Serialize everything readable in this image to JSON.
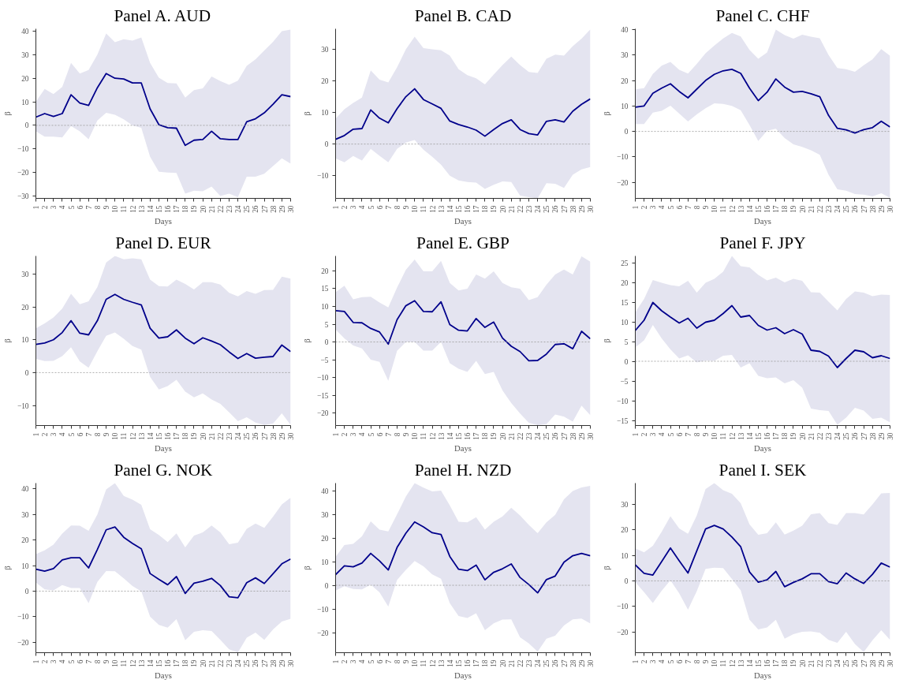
{
  "chart_data": [
    {
      "type": "line",
      "title": "Panel A. AUD",
      "xlabel": "Days",
      "ylabel": "β",
      "x": [
        1,
        2,
        3,
        4,
        5,
        6,
        7,
        8,
        9,
        10,
        11,
        12,
        13,
        14,
        15,
        16,
        17,
        18,
        19,
        20,
        21,
        22,
        23,
        24,
        25,
        26,
        27,
        28,
        29,
        30
      ],
      "xlim": [
        1,
        30
      ],
      "xticks": [
        1,
        2,
        3,
        4,
        5,
        6,
        7,
        8,
        9,
        10,
        11,
        12,
        13,
        14,
        15,
        16,
        17,
        18,
        19,
        20,
        21,
        22,
        23,
        24,
        25,
        26,
        27,
        28,
        29,
        30
      ],
      "ylim": [
        -31,
        41
      ],
      "yticks": [
        -30,
        -20,
        -10,
        0,
        10,
        20,
        30,
        40
      ],
      "ref_lines": [
        {
          "axis": "y",
          "value": 0,
          "color": "#999999",
          "line_style": "dotted"
        }
      ],
      "series": [
        {
          "color": "#00008b",
          "values": [
            3.5,
            5,
            3.8,
            5,
            13,
            9.5,
            8.5,
            16,
            22,
            20,
            19.7,
            18,
            18,
            7,
            0.3,
            -1,
            -1.2,
            -8.5,
            -6.3,
            -6,
            -2.5,
            -5.7,
            -6,
            -6,
            1.5,
            2.8,
            5.3,
            9,
            13,
            12.2
          ],
          "lower": [
            -2.5,
            -4.8,
            -4.8,
            -5.1,
            -0.3,
            -2.5,
            -5.9,
            2.1,
            5.3,
            4.5,
            2.6,
            0,
            -1,
            -13.3,
            -19.7,
            -20,
            -20.2,
            -29,
            -27.7,
            -28,
            -26,
            -30,
            -29,
            -30.5,
            -21.8,
            -21.8,
            -20.5,
            -17.3,
            -14,
            -16.3
          ],
          "upper": [
            10,
            15.5,
            13.3,
            16.3,
            26.5,
            22,
            23.5,
            30,
            39,
            35.3,
            36.6,
            36,
            37.3,
            26.5,
            20.2,
            18,
            17.8,
            11.8,
            15,
            15.7,
            20.7,
            18.8,
            17.2,
            19,
            25.3,
            28,
            31.8,
            35.5,
            40,
            40.7
          ]
        }
      ]
    },
    {
      "type": "line",
      "title": "Panel B. CAD",
      "xlabel": "Days",
      "ylabel": "β",
      "x": [
        1,
        2,
        3,
        4,
        5,
        6,
        7,
        8,
        9,
        10,
        11,
        12,
        13,
        14,
        15,
        16,
        17,
        18,
        19,
        20,
        21,
        22,
        23,
        24,
        25,
        26,
        27,
        28,
        29,
        30
      ],
      "xlim": [
        1,
        30
      ],
      "xticks": [
        1,
        2,
        3,
        4,
        5,
        6,
        7,
        8,
        9,
        10,
        11,
        12,
        13,
        14,
        15,
        16,
        17,
        18,
        19,
        20,
        21,
        22,
        23,
        24,
        25,
        26,
        27,
        28,
        29,
        30
      ],
      "ylim": [
        -17.2,
        36.5
      ],
      "yticks": [
        -10,
        0,
        10,
        20,
        30
      ],
      "ref_lines": [
        {
          "axis": "y",
          "value": 0,
          "color": "#999999",
          "line_style": "dotted"
        }
      ],
      "series": [
        {
          "color": "#00008b",
          "values": [
            1.5,
            2.7,
            4.7,
            4.9,
            10.8,
            8.2,
            6.7,
            11.2,
            15,
            17.5,
            14.1,
            12.7,
            11.3,
            7.3,
            6.2,
            5.4,
            4.4,
            2.5,
            4.6,
            6.5,
            7.7,
            4.6,
            3.3,
            2.9,
            7.2,
            7.7,
            7,
            10.4,
            12.6,
            14.3
          ],
          "lower": [
            -4.5,
            -5.8,
            -3.8,
            -5.2,
            -1.5,
            -3.7,
            -5.8,
            -1.5,
            0.5,
            1.3,
            -1.8,
            -4,
            -6.5,
            -10,
            -11.5,
            -12,
            -12.2,
            -14.2,
            -12.9,
            -11.8,
            -12,
            -16.3,
            -16.8,
            -17.2,
            -12.4,
            -12.6,
            -13.9,
            -9.7,
            -8,
            -7.3
          ],
          "upper": [
            8,
            11,
            13,
            14.7,
            23.3,
            20.4,
            19.5,
            24.3,
            30,
            34,
            30.4,
            30,
            29.7,
            28,
            23.7,
            21.8,
            20.8,
            18.9,
            22,
            25,
            27.7,
            25,
            22.8,
            22.5,
            27,
            28.3,
            28,
            31,
            33.4,
            36.3
          ]
        }
      ]
    },
    {
      "type": "line",
      "title": "Panel C. CHF",
      "xlabel": "Days",
      "ylabel": "β",
      "x": [
        1,
        2,
        3,
        4,
        5,
        6,
        7,
        8,
        9,
        10,
        11,
        12,
        13,
        14,
        15,
        16,
        17,
        18,
        19,
        20,
        21,
        22,
        23,
        24,
        25,
        26,
        27,
        28,
        29,
        30
      ],
      "xlim": [
        1,
        30
      ],
      "xticks": [
        1,
        2,
        3,
        4,
        5,
        6,
        7,
        8,
        9,
        10,
        11,
        12,
        13,
        14,
        15,
        16,
        17,
        18,
        19,
        20,
        21,
        22,
        23,
        24,
        25,
        26,
        27,
        28,
        29,
        30
      ],
      "ylim": [
        -26.3,
        40.3
      ],
      "yticks": [
        -20,
        -10,
        0,
        10,
        20,
        30,
        40
      ],
      "ref_lines": [
        {
          "axis": "y",
          "value": 0,
          "color": "#999999",
          "line_style": "dotted"
        }
      ],
      "series": [
        {
          "color": "#00008b",
          "values": [
            9.5,
            10,
            15,
            17,
            18.7,
            15.7,
            13.2,
            16.6,
            20,
            22.4,
            23.8,
            24.4,
            22.8,
            17,
            12.1,
            15.4,
            20.6,
            17.4,
            15.4,
            15.7,
            14.8,
            13.6,
            6.3,
            1.2,
            0.6,
            -0.6,
            0.7,
            1.5,
            4,
            1.7
          ],
          "lower": [
            2.9,
            2.9,
            7.4,
            8.1,
            10.1,
            7,
            3.9,
            6.7,
            9.1,
            11,
            10.8,
            10,
            8.3,
            2.5,
            -3.8,
            0.3,
            1,
            -2.6,
            -5.1,
            -6.1,
            -7.4,
            -9.2,
            -17,
            -22.7,
            -23.3,
            -24.6,
            -24.8,
            -25.5,
            -24.3,
            -26.1
          ],
          "upper": [
            16.5,
            17,
            22.6,
            25.8,
            27.3,
            24.2,
            22.7,
            26.5,
            30.7,
            33.7,
            36.5,
            38.7,
            37.3,
            32,
            28.5,
            31,
            40,
            37.8,
            36.4,
            38,
            37.2,
            36.6,
            30,
            24.9,
            24.4,
            23.4,
            26,
            28.3,
            32.3,
            29.7
          ]
        }
      ]
    },
    {
      "type": "line",
      "title": "Panel D. EUR",
      "xlabel": "Days",
      "ylabel": "β",
      "x": [
        1,
        2,
        3,
        4,
        5,
        6,
        7,
        8,
        9,
        10,
        11,
        12,
        13,
        14,
        15,
        16,
        17,
        18,
        19,
        20,
        21,
        22,
        23,
        24,
        25,
        26,
        27,
        28,
        29,
        30
      ],
      "xlim": [
        1,
        30
      ],
      "xticks": [
        1,
        2,
        3,
        4,
        5,
        6,
        7,
        8,
        9,
        10,
        11,
        12,
        13,
        14,
        15,
        16,
        17,
        18,
        19,
        20,
        21,
        22,
        23,
        24,
        25,
        26,
        27,
        28,
        29,
        30
      ],
      "ylim": [
        -16.1,
        35.5
      ],
      "yticks": [
        -10,
        0,
        10,
        20,
        30
      ],
      "ref_lines": [
        {
          "axis": "y",
          "value": 0,
          "color": "#999999",
          "line_style": "dotted"
        }
      ],
      "series": [
        {
          "color": "#00008b",
          "values": [
            8.6,
            9,
            10,
            12.2,
            15.8,
            12,
            11.5,
            15.8,
            22.3,
            23.8,
            22.3,
            21.4,
            20.6,
            13.5,
            10.5,
            10.9,
            13,
            10.5,
            8.8,
            10.6,
            9.6,
            8.5,
            6.3,
            4.3,
            5.8,
            4.4,
            4.7,
            4.9,
            8.4,
            6.4
          ],
          "lower": [
            4.2,
            3.5,
            3.6,
            5,
            7.7,
            3.4,
            1.5,
            6.5,
            11.2,
            12.2,
            10.3,
            8.1,
            7,
            -1.3,
            -5.1,
            -4.1,
            -2.2,
            -5.8,
            -7.5,
            -6.3,
            -8.2,
            -9.5,
            -12.1,
            -14.8,
            -13.6,
            -15.2,
            -15.9,
            -15.5,
            -12.4,
            -15.9
          ],
          "upper": [
            13.5,
            15,
            16.8,
            19.5,
            24,
            20.8,
            21.7,
            26,
            33.5,
            35.5,
            34.5,
            34.8,
            34.5,
            28.3,
            26.3,
            26.2,
            28.3,
            27,
            25.3,
            27.5,
            27.5,
            26.8,
            24.3,
            23.2,
            24.8,
            24,
            25.1,
            25.2,
            29.2,
            28.6
          ]
        }
      ]
    },
    {
      "type": "line",
      "title": "Panel E. GBP",
      "xlabel": "Days",
      "ylabel": "β",
      "x": [
        1,
        2,
        3,
        4,
        5,
        6,
        7,
        8,
        9,
        10,
        11,
        12,
        13,
        14,
        15,
        16,
        17,
        18,
        19,
        20,
        21,
        22,
        23,
        24,
        25,
        26,
        27,
        28,
        29,
        30
      ],
      "xlim": [
        1,
        30
      ],
      "xticks": [
        1,
        2,
        3,
        4,
        5,
        6,
        7,
        8,
        9,
        10,
        11,
        12,
        13,
        14,
        15,
        16,
        17,
        18,
        19,
        20,
        21,
        22,
        23,
        24,
        25,
        26,
        27,
        28,
        29,
        30
      ],
      "ylim": [
        -23.5,
        24.2
      ],
      "yticks": [
        -20,
        -15,
        -10,
        -5,
        0,
        5,
        10,
        15,
        20
      ],
      "ref_lines": [
        {
          "axis": "y",
          "value": 0,
          "color": "#999999",
          "line_style": "dotted"
        }
      ],
      "series": [
        {
          "color": "#00008b",
          "values": [
            8.8,
            8.6,
            5.5,
            5.4,
            3.8,
            2.8,
            -0.6,
            6.3,
            10.2,
            11.6,
            8.6,
            8.5,
            11.3,
            4.9,
            3.3,
            3.1,
            6.6,
            4.1,
            5.6,
            1.1,
            -1.2,
            -2.7,
            -5.3,
            -5.2,
            -3.4,
            -0.7,
            -0.5,
            -1.9,
            3,
            0.9
          ],
          "lower": [
            3.5,
            1,
            -1,
            -1.8,
            -5,
            -5.6,
            -10.9,
            -2.5,
            0,
            0,
            -2.4,
            -2.4,
            0,
            -6,
            -7.5,
            -8.4,
            -5.3,
            -9,
            -8.4,
            -13.6,
            -17.2,
            -20.1,
            -22.7,
            -23.4,
            -23.1,
            -20.4,
            -21,
            -22.4,
            -17.9,
            -20.6
          ],
          "upper": [
            14,
            15.8,
            12,
            12.6,
            12.7,
            11.1,
            9.7,
            15.3,
            20.3,
            23.2,
            19.9,
            19.9,
            22.8,
            16.6,
            14.5,
            15,
            19,
            17.8,
            19.9,
            16.6,
            15.4,
            15,
            11.8,
            12.6,
            16.1,
            19,
            20.4,
            19,
            24.1,
            22.6
          ]
        }
      ]
    },
    {
      "type": "line",
      "title": "Panel F. JPY",
      "xlabel": "Days",
      "ylabel": "β",
      "x": [
        1,
        2,
        3,
        4,
        5,
        6,
        7,
        8,
        9,
        10,
        11,
        12,
        13,
        14,
        15,
        16,
        17,
        18,
        19,
        20,
        21,
        22,
        23,
        24,
        25,
        26,
        27,
        28,
        29,
        30
      ],
      "xlim": [
        1,
        30
      ],
      "xticks": [
        1,
        2,
        3,
        4,
        5,
        6,
        7,
        8,
        9,
        10,
        11,
        12,
        13,
        14,
        15,
        16,
        17,
        18,
        19,
        20,
        21,
        22,
        23,
        24,
        25,
        26,
        27,
        28,
        29,
        30
      ],
      "ylim": [
        -16.3,
        26.7
      ],
      "yticks": [
        -15,
        -10,
        -5,
        0,
        5,
        10,
        15,
        20,
        25
      ],
      "ref_lines": [
        {
          "axis": "y",
          "value": 0,
          "color": "#999999",
          "line_style": "dotted"
        }
      ],
      "series": [
        {
          "color": "#00008b",
          "values": [
            7.8,
            10.4,
            14.9,
            12.8,
            11.2,
            9.7,
            10.9,
            8.4,
            9.9,
            10.4,
            12.1,
            14.1,
            11.2,
            11.6,
            9.1,
            7.9,
            8.5,
            7,
            8,
            6.9,
            2.8,
            2.5,
            1.3,
            -1.6,
            0.7,
            2.8,
            2.4,
            0.9,
            1.4,
            0.7
          ],
          "lower": [
            3.5,
            5.3,
            9.2,
            5.8,
            3,
            0.7,
            1.5,
            -0.3,
            0.2,
            0.1,
            1.4,
            1.6,
            -1.6,
            -0.5,
            -3.7,
            -4.3,
            -4.1,
            -5.6,
            -4.8,
            -6.7,
            -12,
            -12.4,
            -12.6,
            -16.1,
            -14.3,
            -11.8,
            -12.5,
            -14.6,
            -14.3,
            -15.5
          ],
          "upper": [
            12.4,
            15.8,
            20.6,
            19.9,
            19.3,
            19,
            20.4,
            17.4,
            19.9,
            20.9,
            22.7,
            26.7,
            24.1,
            23.8,
            21.9,
            20.5,
            21.2,
            20,
            20.9,
            20.4,
            17.5,
            17.4,
            15.1,
            12.9,
            15.8,
            17.7,
            17.4,
            16.5,
            16.9,
            16.8
          ]
        }
      ]
    },
    {
      "type": "line",
      "title": "Panel G. NOK",
      "xlabel": "Days",
      "ylabel": "β",
      "x": [
        1,
        2,
        3,
        4,
        5,
        6,
        7,
        8,
        9,
        10,
        11,
        12,
        13,
        14,
        15,
        16,
        17,
        18,
        19,
        20,
        21,
        22,
        23,
        24,
        25,
        26,
        27,
        28,
        29,
        30
      ],
      "xlim": [
        1,
        30
      ],
      "xticks": [
        1,
        2,
        3,
        4,
        5,
        6,
        7,
        8,
        9,
        10,
        11,
        12,
        13,
        14,
        15,
        16,
        17,
        18,
        19,
        20,
        21,
        22,
        23,
        24,
        25,
        26,
        27,
        28,
        29,
        30
      ],
      "ylim": [
        -24.1,
        42.3
      ],
      "yticks": [
        -20,
        -10,
        0,
        10,
        20,
        30,
        40
      ],
      "ref_lines": [
        {
          "axis": "y",
          "value": 0,
          "color": "#999999",
          "line_style": "dotted"
        }
      ],
      "series": [
        {
          "color": "#00008b",
          "values": [
            8.6,
            7.8,
            8.8,
            12.2,
            13.1,
            13.1,
            9.1,
            16.3,
            24,
            25.1,
            21.1,
            18.7,
            16.6,
            6.9,
            4.6,
            2.5,
            5.7,
            -0.9,
            3.1,
            3.9,
            5,
            2.2,
            -2.2,
            -2.6,
            3.3,
            5.2,
            3,
            6.8,
            10.7,
            12.6
          ],
          "lower": [
            3.4,
            0.7,
            0.3,
            2.4,
            1.2,
            1.2,
            -4.7,
            3.6,
            7.9,
            7.8,
            5,
            2,
            -0.1,
            -10,
            -13.2,
            -14.3,
            -11,
            -19.2,
            -15.9,
            -15.3,
            -15.6,
            -19.1,
            -22.8,
            -24,
            -18.2,
            -16.2,
            -19.1,
            -15,
            -11.9,
            -10.8
          ],
          "upper": [
            14.5,
            16,
            18.2,
            22.5,
            25.7,
            25.6,
            23.6,
            30,
            39.8,
            42.3,
            37.3,
            35.8,
            33.8,
            24.2,
            22,
            19.2,
            22.6,
            17.1,
            21.8,
            23,
            25.7,
            23,
            18.4,
            19,
            24.4,
            26.5,
            24.8,
            29.2,
            34,
            36.6
          ]
        }
      ]
    },
    {
      "type": "line",
      "title": "Panel H. NZD",
      "xlabel": "Days",
      "ylabel": "β",
      "x": [
        1,
        2,
        3,
        4,
        5,
        6,
        7,
        8,
        9,
        10,
        11,
        12,
        13,
        14,
        15,
        16,
        17,
        18,
        19,
        20,
        21,
        22,
        23,
        24,
        25,
        26,
        27,
        28,
        29,
        30
      ],
      "xlim": [
        1,
        30
      ],
      "xticks": [
        1,
        2,
        3,
        4,
        5,
        6,
        7,
        8,
        9,
        10,
        11,
        12,
        13,
        14,
        15,
        16,
        17,
        18,
        19,
        20,
        21,
        22,
        23,
        24,
        25,
        26,
        27,
        28,
        29,
        30
      ],
      "ylim": [
        -28.5,
        43.2
      ],
      "yticks": [
        -20,
        -10,
        0,
        10,
        20,
        30,
        40
      ],
      "ref_lines": [
        {
          "axis": "y",
          "value": 0,
          "color": "#999999",
          "line_style": "dotted"
        }
      ],
      "series": [
        {
          "color": "#00008b",
          "values": [
            4.5,
            8.2,
            7.8,
            9.4,
            13.5,
            10.3,
            6.5,
            16,
            22,
            26.8,
            24.7,
            22.2,
            21.5,
            12.2,
            6.8,
            6.2,
            8.5,
            2.3,
            5.5,
            7,
            9,
            3.3,
            0.3,
            -3.2,
            2.4,
            3.9,
            9.8,
            12.5,
            13.5,
            12.5
          ],
          "lower": [
            -2.2,
            -0.4,
            -1.6,
            -1.7,
            0.3,
            -3,
            -9,
            2.3,
            6.5,
            10.3,
            8,
            4.6,
            2.8,
            -7.6,
            -13,
            -13.8,
            -11.8,
            -19,
            -16.1,
            -14.5,
            -14.4,
            -22,
            -24.6,
            -28.1,
            -22.6,
            -21.3,
            -17,
            -14.4,
            -14.1,
            -16.2
          ],
          "upper": [
            12,
            17,
            17.5,
            20.7,
            27,
            23.5,
            22.8,
            30,
            37.5,
            43.2,
            41.3,
            39.7,
            40,
            33.8,
            26.9,
            26.6,
            28.8,
            23.5,
            26.9,
            29.1,
            32.8,
            29.5,
            25.5,
            22,
            26.6,
            29.8,
            36.4,
            39.9,
            41.4,
            42
          ]
        }
      ]
    },
    {
      "type": "line",
      "title": "Panel I. SEK",
      "xlabel": "Days",
      "ylabel": "β",
      "x": [
        1,
        2,
        3,
        4,
        5,
        6,
        7,
        8,
        9,
        10,
        11,
        12,
        13,
        14,
        15,
        16,
        17,
        18,
        19,
        20,
        21,
        22,
        23,
        24,
        25,
        26,
        27,
        28,
        29,
        30
      ],
      "xlim": [
        1,
        30
      ],
      "xticks": [
        1,
        2,
        3,
        4,
        5,
        6,
        7,
        8,
        9,
        10,
        11,
        12,
        13,
        14,
        15,
        16,
        17,
        18,
        19,
        20,
        21,
        22,
        23,
        24,
        25,
        26,
        27,
        28,
        29,
        30
      ],
      "ylim": [
        -28.2,
        38.4
      ],
      "yticks": [
        -20,
        -10,
        0,
        10,
        20,
        30
      ],
      "ref_lines": [
        {
          "axis": "y",
          "value": 0,
          "color": "#999999",
          "line_style": "dotted"
        }
      ],
      "series": [
        {
          "color": "#00008b",
          "values": [
            6.3,
            3,
            2.3,
            7.6,
            12.9,
            7.9,
            3.1,
            11.8,
            20.4,
            21.8,
            20.4,
            17.2,
            13.4,
            3.5,
            -0.5,
            0.4,
            3.7,
            -2.3,
            -0.6,
            0.8,
            2.8,
            2.8,
            -0.3,
            -1.1,
            3.1,
            0.8,
            -1,
            2.6,
            7,
            5.4
          ],
          "lower": [
            -0.5,
            -4.4,
            -8.7,
            -3.9,
            0.2,
            -4.9,
            -11.3,
            -4,
            4.7,
            5.2,
            5,
            0.8,
            -3.7,
            -15.3,
            -19.1,
            -18.3,
            -15.3,
            -22.7,
            -20.9,
            -20,
            -19.8,
            -20.4,
            -23.2,
            -24.3,
            -20,
            -24.8,
            -28,
            -23.3,
            -19.4,
            -23.2
          ],
          "upper": [
            12.8,
            11.2,
            13.8,
            19.3,
            25.4,
            20.6,
            18.5,
            25.7,
            36.1,
            38.4,
            35.6,
            34.2,
            30.5,
            22.2,
            18.1,
            18.7,
            23,
            18.2,
            19.7,
            21.7,
            26.2,
            26.6,
            22.7,
            22,
            26.6,
            26.6,
            26.1,
            30,
            34.4,
            34.5
          ]
        }
      ]
    }
  ]
}
